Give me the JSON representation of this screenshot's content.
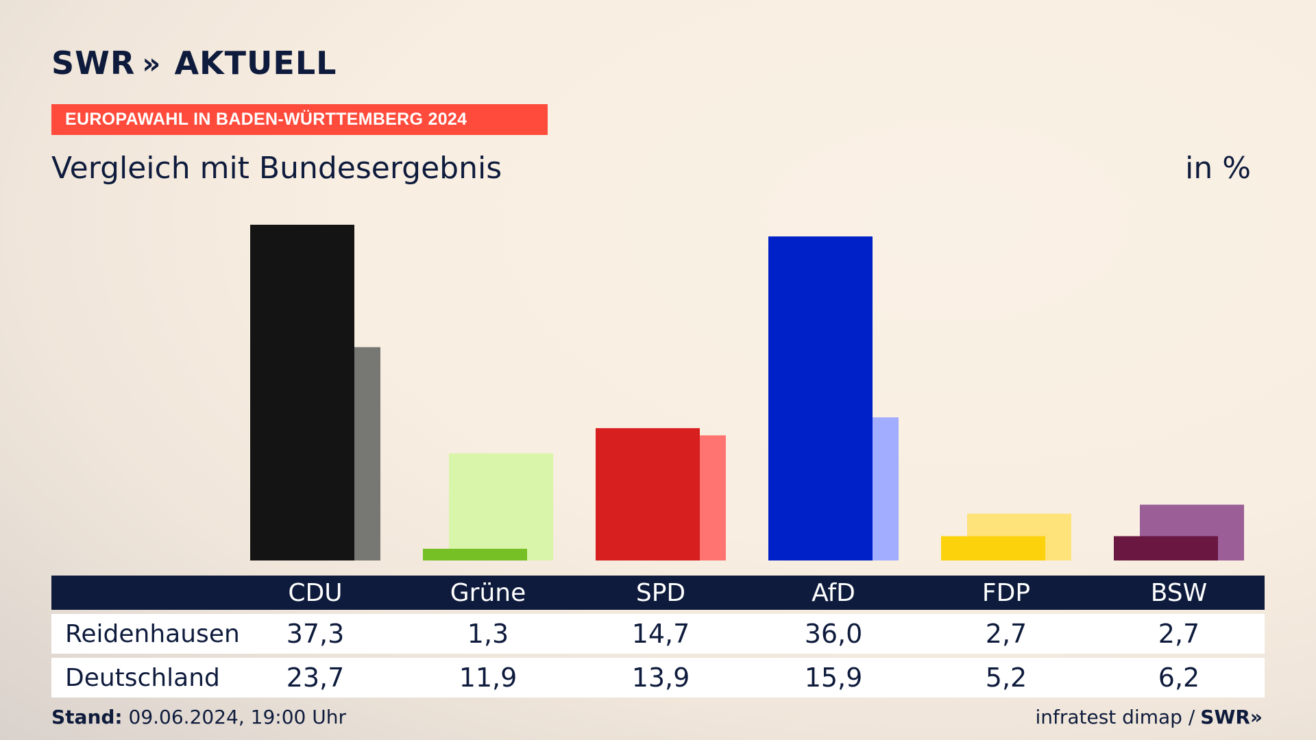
{
  "brand": {
    "name": "SWR",
    "chevrons": "»",
    "product": "AKTUELL"
  },
  "banner": "EUROPAWAHL IN BADEN-WÜRTTEMBERG 2024",
  "subtitle": "Vergleich mit Bundesergebnis",
  "unit": "in %",
  "footer": {
    "stand_label": "Stand:",
    "stand_value": " 09.06.2024, 19:00 Uhr",
    "source": "infratest dimap /",
    "source_brand": "SWR",
    "source_chevrons": "»"
  },
  "colors": {
    "navy": "#0e1b3c",
    "banner": "#ff4b3c"
  },
  "chart_data": {
    "type": "bar",
    "categories": [
      "CDU",
      "Grüne",
      "SPD",
      "AfD",
      "FDP",
      "BSW"
    ],
    "series": [
      {
        "name": "Reidenhausen",
        "values": [
          37.3,
          1.3,
          14.7,
          36.0,
          2.7,
          2.7
        ],
        "labels": [
          "37,3",
          "1,3",
          "14,7",
          "36,0",
          "2,7",
          "2,7"
        ]
      },
      {
        "name": "Deutschland",
        "values": [
          23.7,
          11.9,
          13.9,
          15.9,
          5.2,
          6.2
        ],
        "labels": [
          "23,7",
          "11,9",
          "13,9",
          "15,9",
          "5,2",
          "6,2"
        ]
      }
    ],
    "colors_primary": [
      "#141414",
      "#76bf24",
      "#d71f1f",
      "#0020c8",
      "#fcd20c",
      "#6a1742"
    ],
    "colors_secondary": [
      "#777774",
      "#d9f5a9",
      "#ff7470",
      "#a2adff",
      "#fee27a",
      "#9b5e97"
    ],
    "ylim": [
      0,
      37.3
    ]
  }
}
